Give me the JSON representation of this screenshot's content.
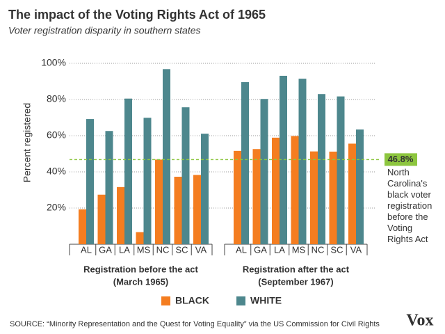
{
  "chart_data": {
    "type": "bar",
    "title": "The impact of the Voting Rights Act of 1965",
    "subtitle": "Voter registration disparity in southern states",
    "y_label": "Percent registered",
    "ylim": [
      0,
      100
    ],
    "yticks": [
      {
        "value": 20,
        "label": "20%"
      },
      {
        "value": 40,
        "label": "40%"
      },
      {
        "value": 60,
        "label": "60%"
      },
      {
        "value": 80,
        "label": "80%"
      },
      {
        "value": 100,
        "label": "100%"
      }
    ],
    "grid": true,
    "groups": [
      {
        "label_lines": [
          "Registration before the act",
          "(March 1965)"
        ],
        "categories": [
          "AL",
          "GA",
          "LA",
          "MS",
          "NC",
          "SC",
          "VA"
        ]
      },
      {
        "label_lines": [
          "Registration after the act",
          "(September 1967)"
        ],
        "categories": [
          "AL",
          "GA",
          "LA",
          "MS",
          "NC",
          "SC",
          "VA"
        ]
      }
    ],
    "series": [
      {
        "name": "BLACK",
        "color": "#f47d20",
        "values": [
          [
            19.3,
            27.4,
            31.6,
            6.7,
            46.8,
            37.3,
            38.3
          ],
          [
            51.6,
            52.6,
            58.9,
            59.8,
            51.3,
            51.2,
            55.6
          ]
        ]
      },
      {
        "name": "WHITE",
        "color": "#4d878d",
        "values": [
          [
            69.2,
            62.6,
            80.5,
            69.9,
            96.8,
            75.7,
            61.1
          ],
          [
            89.6,
            80.3,
            93.1,
            91.5,
            83.0,
            81.7,
            63.4
          ]
        ]
      }
    ],
    "annotation": {
      "value": 46.8,
      "label": "46.8%",
      "color": "#8dc63f",
      "text_lines": [
        "North",
        "Carolina's",
        "black voter",
        "registration",
        "before the",
        "Voting",
        "Rights Act"
      ]
    },
    "source": "SOURCE: “Minority Representation and the Quest for Voting Equality” via the US Commission for Civil Rights",
    "logo": "Vox"
  }
}
